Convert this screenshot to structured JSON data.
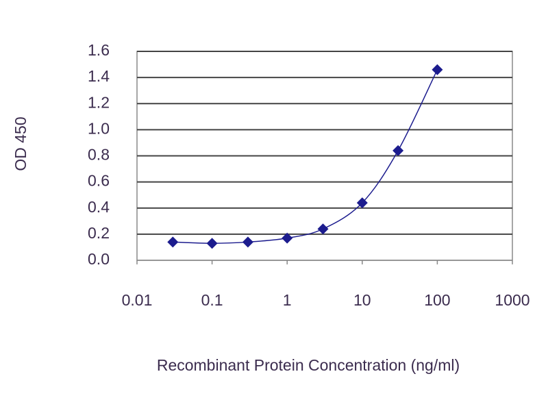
{
  "chart_data": {
    "type": "line",
    "x_label": "Recombinant Protein Concentration (ng/ml)",
    "y_label": "OD 450",
    "x": [
      0.03,
      0.1,
      0.3,
      1,
      3,
      10,
      30,
      100
    ],
    "values": [
      0.14,
      0.13,
      0.14,
      0.17,
      0.24,
      0.44,
      0.84,
      1.46
    ],
    "color": "#1c1c8e",
    "xscale": "log",
    "xlim": [
      0.01,
      1000
    ],
    "xticks": [
      0.01,
      0.1,
      1,
      10,
      100,
      1000
    ],
    "ylim": [
      0,
      1.6
    ],
    "yticks": [
      {
        "value": 0,
        "label": "0.0"
      },
      {
        "value": 0.2,
        "label": "0.2"
      },
      {
        "value": 0.4,
        "label": "0.4"
      },
      {
        "value": 0.6,
        "label": "0.6"
      },
      {
        "value": 0.8,
        "label": "0.8"
      },
      {
        "value": 1.0,
        "label": "1.0"
      },
      {
        "value": 1.2,
        "label": "1.2"
      },
      {
        "value": 1.4,
        "label": "1.4"
      },
      {
        "value": 1.6,
        "label": "1.6"
      }
    ],
    "grid": true
  }
}
